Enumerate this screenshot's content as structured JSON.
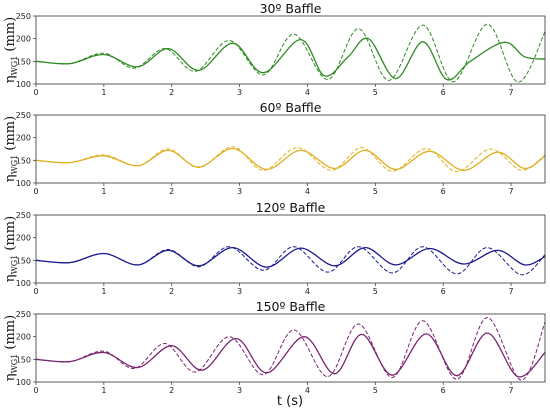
{
  "x_axis_label": "t (s)",
  "y_axis_label": {
    "main": "η",
    "sub": "WG1",
    "unit": " (mm)"
  },
  "xlim": [
    0,
    7.5
  ],
  "x_ticks": [
    0,
    1,
    2,
    3,
    4,
    5,
    6,
    7
  ],
  "chart_data": [
    {
      "type": "line",
      "title": "30º Baffle",
      "color": "#2e8b22",
      "ylim": [
        100,
        250
      ],
      "y_ticks": [
        100,
        150,
        200,
        250
      ],
      "series": [
        {
          "style": "solid",
          "x": [
            0,
            0.5,
            1.0,
            1.5,
            1.95,
            2.4,
            2.9,
            3.35,
            3.9,
            4.25,
            4.6,
            4.9,
            5.3,
            5.7,
            6.05,
            6.4,
            6.9,
            7.2,
            7.5
          ],
          "values": [
            150,
            145,
            165,
            138,
            178,
            130,
            190,
            125,
            198,
            118,
            160,
            200,
            112,
            193,
            110,
            150,
            192,
            160,
            155
          ]
        },
        {
          "style": "dashed",
          "x": [
            0,
            0.5,
            1.0,
            1.45,
            1.9,
            2.35,
            2.85,
            3.35,
            3.8,
            4.3,
            4.75,
            5.2,
            5.7,
            6.15,
            6.65,
            7.1,
            7.5
          ],
          "values": [
            150,
            145,
            168,
            135,
            178,
            128,
            196,
            120,
            210,
            110,
            222,
            108,
            230,
            105,
            232,
            104,
            215
          ]
        }
      ]
    },
    {
      "type": "line",
      "title": "60º Baffle",
      "color": "#e0b020",
      "ylim": [
        100,
        250
      ],
      "y_ticks": [
        100,
        150,
        200,
        250
      ],
      "series": [
        {
          "style": "solid",
          "x": [
            0,
            0.5,
            1.0,
            1.5,
            1.95,
            2.4,
            2.9,
            3.4,
            3.9,
            4.4,
            4.85,
            5.3,
            5.8,
            6.3,
            6.8,
            7.2,
            7.5
          ],
          "values": [
            150,
            145,
            160,
            138,
            172,
            135,
            176,
            130,
            172,
            132,
            172,
            130,
            170,
            128,
            168,
            132,
            160
          ]
        },
        {
          "style": "dashed",
          "x": [
            0,
            0.5,
            1.0,
            1.5,
            1.95,
            2.4,
            2.9,
            3.35,
            3.85,
            4.35,
            4.8,
            5.25,
            5.75,
            6.2,
            6.7,
            7.15,
            7.5
          ],
          "values": [
            150,
            145,
            162,
            138,
            175,
            134,
            180,
            128,
            178,
            128,
            178,
            126,
            176,
            125,
            175,
            128,
            162
          ]
        }
      ]
    },
    {
      "type": "line",
      "title": "120º Baffle",
      "color": "#1a1a8c",
      "ylim": [
        100,
        250
      ],
      "y_ticks": [
        100,
        150,
        200,
        250
      ],
      "series": [
        {
          "style": "solid",
          "x": [
            0,
            0.5,
            1.0,
            1.5,
            1.95,
            2.4,
            2.9,
            3.4,
            3.9,
            4.4,
            4.85,
            5.3,
            5.8,
            6.3,
            6.8,
            7.2,
            7.5
          ],
          "values": [
            150,
            145,
            165,
            140,
            172,
            138,
            178,
            135,
            177,
            138,
            178,
            140,
            176,
            142,
            172,
            140,
            158
          ]
        },
        {
          "style": "dashed",
          "x": [
            0,
            0.5,
            1.0,
            1.5,
            1.95,
            2.4,
            2.85,
            3.35,
            3.8,
            4.3,
            4.75,
            5.25,
            5.7,
            6.2,
            6.65,
            7.15,
            7.5
          ],
          "values": [
            150,
            145,
            165,
            140,
            174,
            136,
            180,
            128,
            180,
            124,
            180,
            122,
            180,
            120,
            178,
            118,
            162
          ]
        }
      ]
    },
    {
      "type": "line",
      "title": "150º Baffle",
      "color": "#7a2470",
      "ylim": [
        100,
        250
      ],
      "y_ticks": [
        100,
        150,
        200,
        250
      ],
      "series": [
        {
          "style": "solid",
          "x": [
            0,
            0.5,
            1.0,
            1.5,
            2.0,
            2.45,
            2.95,
            3.4,
            3.95,
            4.4,
            4.8,
            5.25,
            5.75,
            6.2,
            6.65,
            7.1,
            7.5
          ],
          "values": [
            150,
            145,
            165,
            132,
            180,
            126,
            196,
            120,
            200,
            118,
            205,
            115,
            206,
            114,
            208,
            112,
            165
          ]
        },
        {
          "style": "dashed",
          "x": [
            0,
            0.5,
            1.0,
            1.45,
            1.9,
            2.35,
            2.85,
            3.35,
            3.8,
            4.3,
            4.75,
            5.25,
            5.7,
            6.2,
            6.65,
            7.15,
            7.5
          ],
          "values": [
            150,
            145,
            168,
            130,
            185,
            122,
            200,
            116,
            215,
            112,
            228,
            110,
            235,
            106,
            242,
            104,
            232
          ]
        }
      ]
    }
  ]
}
